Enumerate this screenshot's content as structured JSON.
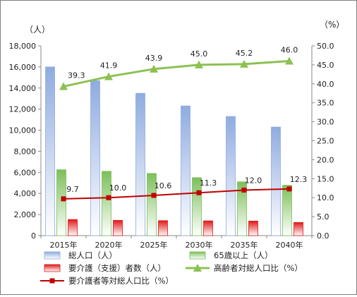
{
  "chart_data": {
    "type": "bar",
    "categories": [
      "2015年",
      "2020年",
      "2025年",
      "2030年",
      "2035年",
      "2040年"
    ],
    "left_unit": "（人）",
    "right_unit": "（%）",
    "left_axis": {
      "ylim": [
        0,
        18000
      ],
      "tick_labels": [
        "0",
        "2,000",
        "4,000",
        "6,000",
        "8,000",
        "10,000",
        "12,000",
        "14,000",
        "16,000",
        "18,000"
      ]
    },
    "right_axis": {
      "ylim": [
        0,
        50
      ],
      "tick_labels": [
        "0.0",
        "5.0",
        "10.0",
        "15.0",
        "20.0",
        "25.0",
        "30.0",
        "35.0",
        "40.0",
        "45.0",
        "50.0"
      ]
    },
    "bar_series": [
      {
        "name": "総人口（人）",
        "axis": "left",
        "color": "#8fabe0",
        "values": [
          16000,
          14700,
          13500,
          12300,
          11300,
          10300
        ]
      },
      {
        "name": "65歳以上（人）",
        "axis": "left",
        "color": "#7cbf5a",
        "values": [
          6250,
          6100,
          5900,
          5500,
          5100,
          4780
        ]
      },
      {
        "name": "要介護（支援）者数（人）",
        "axis": "left",
        "color": "#e01818",
        "values": [
          1530,
          1450,
          1420,
          1400,
          1380,
          1250
        ]
      }
    ],
    "line_series": [
      {
        "name": "高齢者対総人口比（%）",
        "axis": "right",
        "color": "#8cc152",
        "marker": "triangle",
        "values": [
          39.3,
          41.9,
          43.9,
          45.0,
          45.2,
          46.0
        ],
        "labels": [
          "39.3",
          "41.9",
          "43.9",
          "45.0",
          "45.2",
          "46.0"
        ]
      },
      {
        "name": "要介護者等対総人口比（%）",
        "axis": "right",
        "color": "#c00000",
        "marker": "square",
        "values": [
          9.7,
          10.0,
          10.6,
          11.3,
          12.0,
          12.3
        ],
        "labels": [
          "9.7",
          "10.0",
          "10.6",
          "11.3",
          "12.0",
          "12.3"
        ]
      }
    ],
    "legend": {
      "position": "bottom",
      "items": [
        "総人口（人）",
        "65歳以上（人）",
        "要介護（支援）者数（人）",
        "高齢者対総人口比（%）",
        "要介護者等対総人口比（%）"
      ]
    },
    "grid": false
  }
}
